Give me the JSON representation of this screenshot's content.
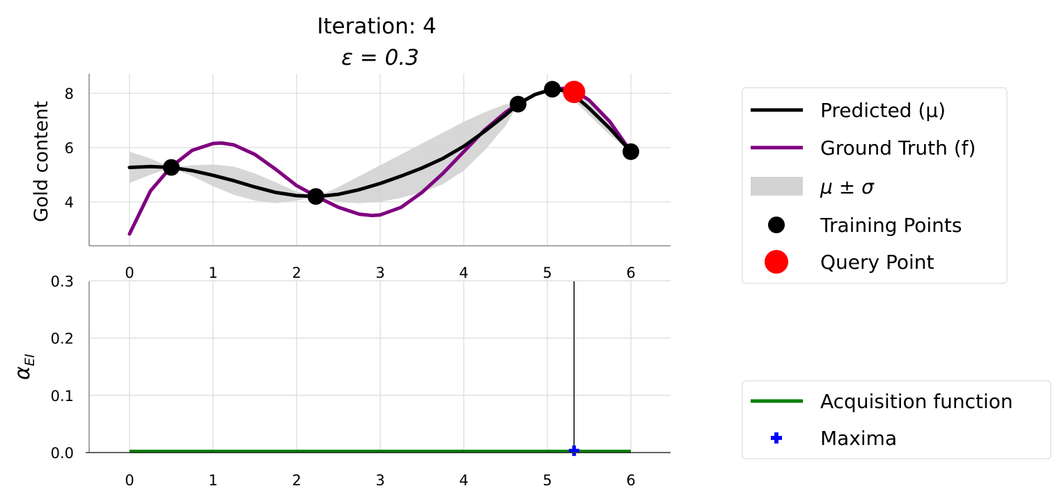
{
  "chart_data": [
    {
      "type": "line",
      "title_line1": "Iteration: 4",
      "title_line2": "ε = 0.3",
      "xlabel": "",
      "ylabel": "Gold content",
      "xlim": [
        -0.5,
        6.5
      ],
      "ylim": [
        2.3,
        8.7
      ],
      "xticks": [
        "0",
        "1",
        "2",
        "3",
        "4",
        "5",
        "6"
      ],
      "yticks": [
        "4",
        "6",
        "8"
      ],
      "grid": true,
      "legend_position": "right",
      "series": [
        {
          "name": "Predicted (μ)",
          "color": "#000000",
          "x": [
            0,
            0.25,
            0.5,
            0.75,
            1.0,
            1.25,
            1.5,
            1.75,
            2.0,
            2.25,
            2.5,
            2.75,
            3.0,
            3.25,
            3.5,
            3.75,
            4.0,
            4.25,
            4.5,
            4.65,
            4.85,
            5.06,
            5.2,
            5.35,
            5.5,
            5.75,
            6.0
          ],
          "y": [
            5.27,
            5.3,
            5.27,
            5.15,
            4.98,
            4.78,
            4.55,
            4.35,
            4.23,
            4.2,
            4.28,
            4.45,
            4.68,
            4.95,
            5.25,
            5.6,
            6.05,
            6.6,
            7.2,
            7.6,
            7.95,
            8.15,
            8.1,
            7.85,
            7.45,
            6.7,
            5.85
          ]
        },
        {
          "name": "Ground Truth (f)",
          "color": "#800080",
          "x": [
            0,
            0.25,
            0.5,
            0.75,
            1.0,
            1.1,
            1.25,
            1.5,
            1.75,
            2.0,
            2.25,
            2.5,
            2.75,
            2.9,
            3.0,
            3.25,
            3.5,
            3.75,
            4.0,
            4.25,
            4.5,
            4.65,
            4.85,
            5.06,
            5.2,
            5.35,
            5.5,
            5.75,
            6.0
          ],
          "y": [
            2.82,
            4.4,
            5.3,
            5.9,
            6.15,
            6.17,
            6.1,
            5.75,
            5.2,
            4.6,
            4.18,
            3.8,
            3.55,
            3.5,
            3.52,
            3.8,
            4.35,
            5.05,
            5.85,
            6.65,
            7.3,
            7.62,
            7.95,
            8.15,
            8.18,
            8.05,
            7.75,
            6.95,
            5.85
          ]
        }
      ],
      "band": {
        "name": "μ ± σ",
        "color": "#d3d3d3",
        "x": [
          0,
          0.25,
          0.5,
          0.75,
          1.0,
          1.25,
          1.5,
          1.75,
          2.0,
          2.25,
          2.5,
          2.75,
          3.0,
          3.25,
          3.5,
          3.75,
          4.0,
          4.25,
          4.5,
          4.65,
          4.85,
          5.06,
          5.2,
          5.35,
          5.5,
          5.75,
          6.0
        ],
        "upper": [
          5.85,
          5.6,
          5.27,
          5.35,
          5.38,
          5.3,
          5.05,
          4.72,
          4.38,
          4.2,
          4.55,
          4.95,
          5.35,
          5.75,
          6.15,
          6.55,
          6.95,
          7.3,
          7.6,
          7.6,
          7.95,
          8.15,
          8.2,
          8.05,
          7.7,
          6.95,
          5.85
        ],
        "lower": [
          4.7,
          5.0,
          5.27,
          4.95,
          4.58,
          4.26,
          4.05,
          3.95,
          4.05,
          4.2,
          4.0,
          3.95,
          4.0,
          4.15,
          4.35,
          4.65,
          5.15,
          5.9,
          6.8,
          7.6,
          7.95,
          8.15,
          8.0,
          7.65,
          7.2,
          6.45,
          5.85
        ]
      },
      "training_points": {
        "name": "Training Points",
        "color": "#000000",
        "x": [
          0.5,
          2.23,
          4.65,
          5.06,
          6.0
        ],
        "y": [
          5.27,
          4.2,
          7.6,
          8.15,
          5.85
        ]
      },
      "query_point": {
        "name": "Query Point",
        "color": "#ff0000",
        "x": 5.32,
        "y": 8.05
      }
    },
    {
      "type": "line",
      "xlabel": "",
      "ylabel": "α",
      "ylabel_sub": "EI",
      "xlim": [
        -0.5,
        6.5
      ],
      "ylim": [
        0.0,
        0.3
      ],
      "xticks": [
        "0",
        "1",
        "2",
        "3",
        "4",
        "5",
        "6"
      ],
      "yticks": [
        "0.0",
        "0.1",
        "0.2",
        "0.3"
      ],
      "grid": true,
      "legend_position": "right",
      "series": [
        {
          "name": "Acquisition function",
          "color": "#008000",
          "x": [
            0,
            6
          ],
          "y": [
            0.002,
            0.002
          ]
        }
      ],
      "maxima": {
        "name": "Maxima",
        "color": "#0000ff",
        "x": 5.32,
        "y": 0.002
      },
      "vertical_line_x": 5.32
    }
  ]
}
